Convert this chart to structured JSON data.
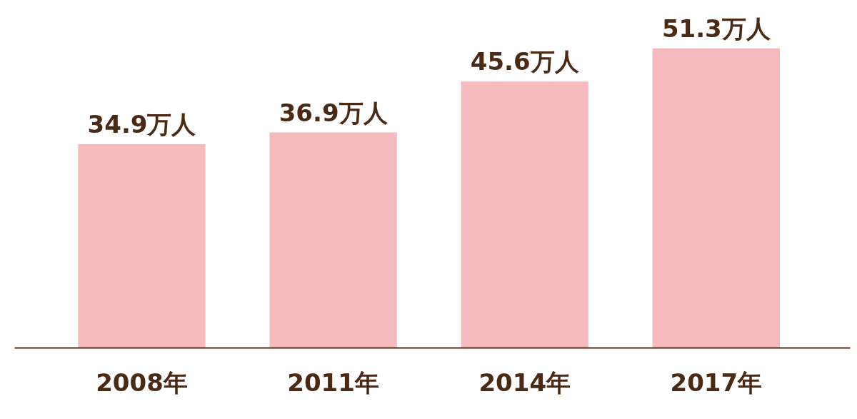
{
  "chart_data": {
    "type": "bar",
    "categories": [
      "2008年",
      "2011年",
      "2014年",
      "2017年"
    ],
    "values": [
      34.9,
      36.9,
      45.6,
      51.3
    ],
    "color": "#f4babd",
    "value_labels": [
      "34.9万人",
      "36.9万人",
      "45.6万人",
      "51.3万人"
    ]
  }
}
